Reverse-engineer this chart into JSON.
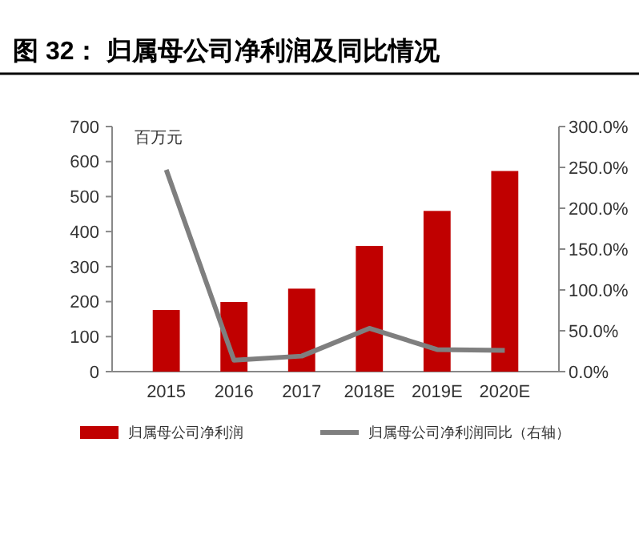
{
  "chart_data": {
    "type": "bar",
    "title": "图 32：  归属母公司净利润及同比情况",
    "ylabel": "百万元",
    "categories": [
      "2015",
      "2016",
      "2017",
      "2018E",
      "2019E",
      "2020E"
    ],
    "series": [
      {
        "name": "归属母公司净利润",
        "color": "#c00000",
        "values": [
          176,
          199,
          237,
          359,
          459,
          573
        ]
      },
      {
        "name": "归属母公司净利润同比（右轴）",
        "type": "line",
        "axis": "y2",
        "color": "#7f7f7f",
        "values": [
          247,
          14,
          19,
          53,
          27,
          26
        ]
      }
    ],
    "ylim": [
      0,
      700
    ],
    "yticks": [
      0,
      100,
      200,
      300,
      400,
      500,
      600,
      700
    ],
    "y2lim": [
      0,
      300
    ],
    "y2ticks": [
      {
        "value": 0,
        "label": "0.0%"
      },
      {
        "value": 50,
        "label": "50.0%"
      },
      {
        "value": 100,
        "label": "100.0%"
      },
      {
        "value": 150,
        "label": "150.0%"
      },
      {
        "value": 200,
        "label": "200.0%"
      },
      {
        "value": 250,
        "label": "250.0%"
      },
      {
        "value": 300,
        "label": "300.0%"
      }
    ],
    "legend": "bottom",
    "marker": "none",
    "line_style": "solid"
  }
}
